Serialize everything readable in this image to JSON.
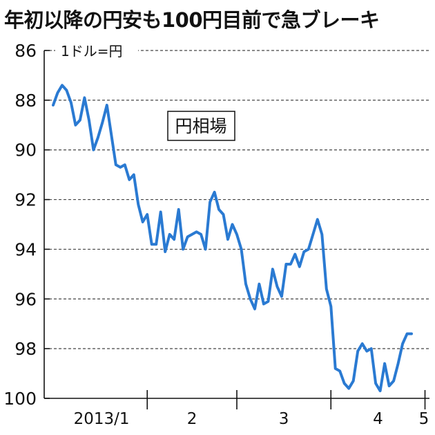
{
  "title": "年初以降の円安も100円目前で急ブレーキ",
  "chart_data": {
    "type": "line",
    "title": "年初以降の円安も100円目前で急ブレーキ",
    "unit_label": "1ドル=円",
    "series_label": "円相場",
    "y_inverted": true,
    "ylim": [
      86,
      100
    ],
    "y_ticks": [
      86,
      88,
      90,
      92,
      94,
      96,
      98,
      100
    ],
    "grid": true,
    "x_tick_labels": [
      "2013/1",
      "2",
      "3",
      "4",
      "5"
    ],
    "x_tick_positions": [
      0,
      21,
      41,
      62,
      83
    ],
    "xlim": [
      -2,
      84
    ],
    "series": [
      {
        "name": "円相場",
        "x": [
          0,
          1,
          2,
          3,
          4,
          5,
          6,
          7,
          8,
          9,
          10,
          11,
          12,
          13,
          14,
          15,
          16,
          17,
          18,
          19,
          20,
          21,
          22,
          23,
          24,
          25,
          26,
          27,
          28,
          29,
          30,
          31,
          32,
          33,
          34,
          35,
          36,
          37,
          38,
          39,
          40,
          41,
          42,
          43,
          44,
          45,
          46,
          47,
          48,
          49,
          50,
          51,
          52,
          53,
          54,
          55,
          56,
          57,
          58,
          59,
          60,
          61,
          62,
          63,
          64,
          65,
          66,
          67,
          68,
          69,
          70,
          71,
          72,
          73,
          74,
          75,
          76,
          77,
          78,
          79,
          80
        ],
        "values": [
          88.2,
          87.7,
          87.4,
          87.6,
          88.1,
          89.0,
          88.8,
          87.9,
          88.8,
          90.0,
          89.5,
          88.9,
          88.2,
          89.4,
          90.6,
          90.7,
          90.6,
          91.2,
          91.0,
          92.2,
          92.9,
          92.6,
          93.8,
          93.8,
          92.5,
          94.1,
          93.4,
          93.6,
          92.4,
          94.0,
          93.5,
          93.4,
          93.3,
          93.4,
          94.0,
          92.1,
          91.7,
          92.4,
          92.6,
          93.6,
          93.0,
          93.4,
          94.0,
          95.4,
          96.0,
          96.4,
          95.4,
          96.2,
          96.1,
          94.8,
          95.5,
          95.9,
          94.6,
          94.6,
          94.2,
          94.7,
          94.1,
          94.0,
          93.4,
          92.8,
          93.4,
          95.6,
          96.3,
          98.8,
          98.9,
          99.4,
          99.6,
          99.3,
          98.1,
          97.8,
          98.1,
          98.0,
          99.4,
          99.7,
          98.6,
          99.5,
          99.3,
          98.6,
          97.8,
          97.4,
          97.4
        ]
      }
    ]
  }
}
